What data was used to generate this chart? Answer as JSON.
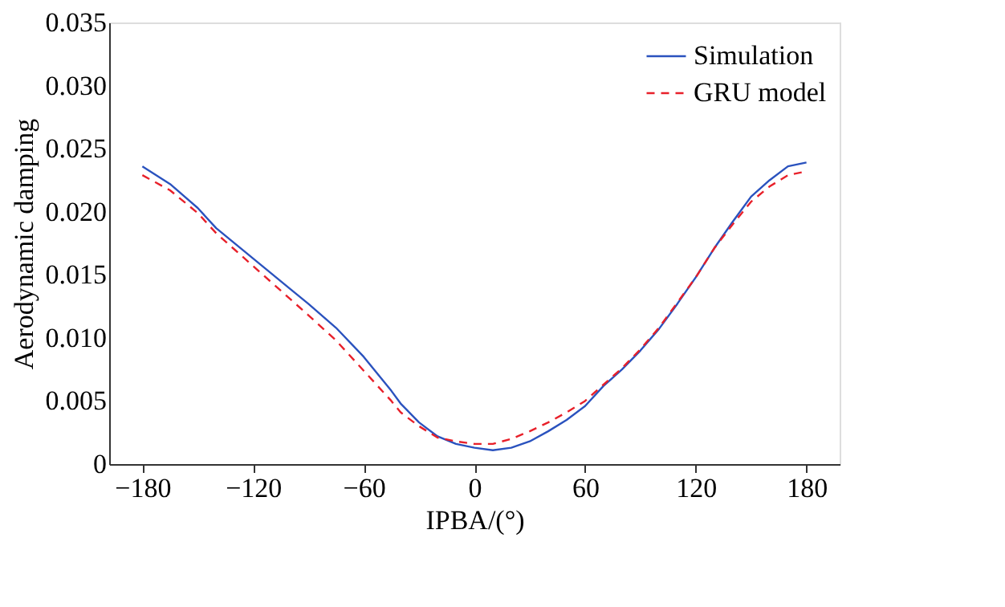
{
  "chart_data": {
    "type": "line",
    "xlabel": "IPBA/(°)",
    "ylabel": "Aerodynamic damping",
    "x": [
      -180,
      -165,
      -150,
      -140,
      -120,
      -100,
      -90,
      -75,
      -60,
      -45,
      -40,
      -30,
      -20,
      -10,
      0,
      10,
      20,
      30,
      40,
      50,
      60,
      70,
      80,
      90,
      100,
      110,
      120,
      130,
      140,
      150,
      160,
      170,
      180
    ],
    "series": [
      {
        "name": "Simulation",
        "color": "#2a52be",
        "line_style": "solid",
        "values": [
          0.0236,
          0.0222,
          0.0203,
          0.0187,
          0.0163,
          0.0139,
          0.0127,
          0.0108,
          0.0085,
          0.0058,
          0.0048,
          0.0033,
          0.0022,
          0.0016,
          0.0013,
          0.0011,
          0.0013,
          0.0018,
          0.0026,
          0.0035,
          0.0046,
          0.0062,
          0.0075,
          0.009,
          0.0107,
          0.0127,
          0.0148,
          0.0171,
          0.0192,
          0.0212,
          0.0225,
          0.0236,
          0.0239
        ]
      },
      {
        "name": "GRU model",
        "color": "#e8202a",
        "line_style": "dashed",
        "values": [
          0.0229,
          0.0217,
          0.0199,
          0.0183,
          0.0157,
          0.0131,
          0.0118,
          0.0098,
          0.0074,
          0.005,
          0.0041,
          0.003,
          0.0021,
          0.0018,
          0.0016,
          0.0016,
          0.002,
          0.0026,
          0.0033,
          0.0041,
          0.005,
          0.0063,
          0.0076,
          0.0091,
          0.0108,
          0.0128,
          0.0148,
          0.0171,
          0.019,
          0.0208,
          0.022,
          0.0229,
          0.0232
        ]
      }
    ],
    "xlim": [
      -198,
      198
    ],
    "xticks": [
      -180,
      -120,
      -60,
      0,
      60,
      120,
      180
    ],
    "ylim": [
      0,
      0.035
    ],
    "yticks": [
      0,
      0.005,
      {
        "value": 0.01,
        "label": "0.010"
      },
      0.015,
      {
        "value": 0.02,
        "label": "0.020"
      },
      0.025,
      {
        "value": 0.03,
        "label": "0.030"
      },
      0.035
    ],
    "grid": false,
    "legend": "top right",
    "marker": "none"
  }
}
